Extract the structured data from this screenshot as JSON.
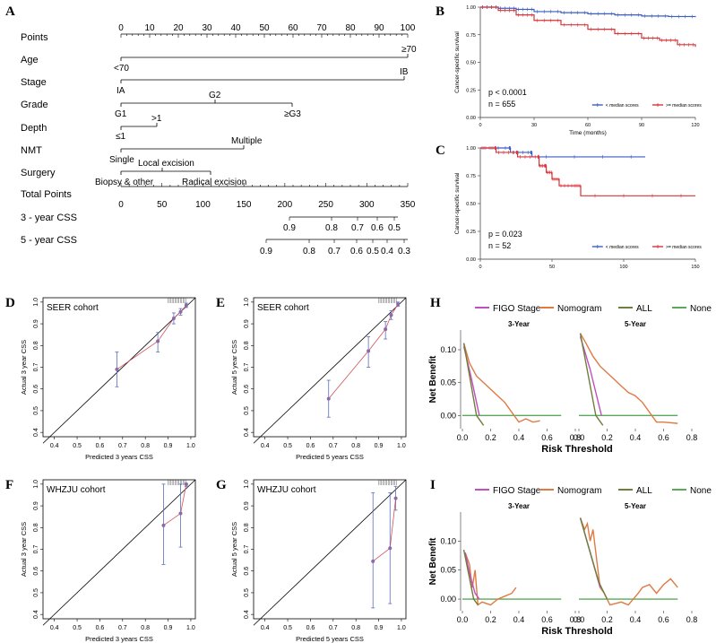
{
  "panel_labels": {
    "a": "A",
    "b": "B",
    "c": "C",
    "d": "D",
    "e": "E",
    "f": "F",
    "g": "G",
    "h": "H",
    "i": "I"
  },
  "nomogram": {
    "rows": {
      "points": "Points",
      "age": "Age",
      "stage": "Stage",
      "grade": "Grade",
      "depth": "Depth",
      "nmt": "NMT",
      "surgery": "Surgery",
      "total": "Total Points",
      "css3": "3 - year CSS",
      "css5": "5 - year CSS"
    },
    "points_ticks": [
      "0",
      "10",
      "20",
      "30",
      "40",
      "50",
      "60",
      "70",
      "80",
      "90",
      "100"
    ],
    "age": {
      "low": "<70",
      "high": "≥70"
    },
    "stage": {
      "low": "IA",
      "high": "IB"
    },
    "grade": {
      "g1": "G1",
      "g2": "G2",
      "g3": "≥G3"
    },
    "depth": {
      "low": "≤1",
      "high": ">1"
    },
    "nmt": {
      "low": "Single",
      "high": "Multiple"
    },
    "surgery": {
      "biopsy": "Biopsy & other",
      "local": "Local excision",
      "radical": "Radical excision"
    },
    "total_ticks": [
      "0",
      "50",
      "100",
      "150",
      "200",
      "250",
      "300",
      "350"
    ],
    "css3_ticks": [
      "0.9",
      "0.8",
      "0.7",
      "0.6",
      "0.5"
    ],
    "css5_ticks": [
      "0.9",
      "0.8",
      "0.7",
      "0.6",
      "0.5",
      "0.4",
      "0.3"
    ]
  },
  "chart_data": [
    {
      "id": "B",
      "type": "line",
      "title": "",
      "ylabel": "Cancer-specific survival",
      "xlabel": "Time (months)",
      "xlim": [
        0,
        120
      ],
      "ylim": [
        0,
        1
      ],
      "x_ticks": [
        "0",
        "30",
        "60",
        "90",
        "120"
      ],
      "y_ticks": [
        "0.00",
        "0.25",
        "0.50",
        "0.75",
        "1.00"
      ],
      "annotations": {
        "p": "p < 0.0001",
        "n": "n = 655"
      },
      "series": [
        {
          "name": "< median scores",
          "color": "#3b5fc0",
          "points": [
            [
              0,
              1.0
            ],
            [
              10,
              0.99
            ],
            [
              20,
              0.98
            ],
            [
              30,
              0.96
            ],
            [
              45,
              0.95
            ],
            [
              60,
              0.94
            ],
            [
              75,
              0.93
            ],
            [
              90,
              0.92
            ],
            [
              105,
              0.915
            ],
            [
              120,
              0.91
            ]
          ]
        },
        {
          "name": ">= median scores",
          "color": "#d9343b",
          "points": [
            [
              0,
              1.0
            ],
            [
              10,
              0.97
            ],
            [
              20,
              0.93
            ],
            [
              30,
              0.88
            ],
            [
              45,
              0.84
            ],
            [
              60,
              0.8
            ],
            [
              75,
              0.76
            ],
            [
              90,
              0.72
            ],
            [
              100,
              0.7
            ],
            [
              110,
              0.66
            ],
            [
              120,
              0.64
            ]
          ]
        }
      ]
    },
    {
      "id": "C",
      "type": "line",
      "ylabel": "Cancer-specific survival",
      "xlabel": "",
      "xlim": [
        0,
        150
      ],
      "ylim": [
        0,
        1
      ],
      "x_ticks": [
        "0",
        "50",
        "100",
        "150"
      ],
      "y_ticks": [
        "0.00",
        "0.25",
        "0.50",
        "0.75",
        "1.00"
      ],
      "annotations": {
        "p": "p = 0.023",
        "n": "n = 52"
      },
      "series": [
        {
          "name": "< median scores",
          "color": "#3b5fc0",
          "points": [
            [
              0,
              1.0
            ],
            [
              20,
              1.0
            ],
            [
              21,
              0.96
            ],
            [
              35,
              0.96
            ],
            [
              36,
              0.92
            ],
            [
              115,
              0.92
            ]
          ]
        },
        {
          "name": ">= median scores",
          "color": "#d9343b",
          "points": [
            [
              0,
              1.0
            ],
            [
              10,
              1.0
            ],
            [
              11,
              0.96
            ],
            [
              25,
              0.96
            ],
            [
              26,
              0.92
            ],
            [
              40,
              0.92
            ],
            [
              41,
              0.84
            ],
            [
              45,
              0.84
            ],
            [
              46,
              0.78
            ],
            [
              50,
              0.72
            ],
            [
              55,
              0.66
            ],
            [
              65,
              0.66
            ],
            [
              70,
              0.57
            ],
            [
              150,
              0.57
            ]
          ]
        }
      ]
    },
    {
      "id": "D",
      "type": "scatter",
      "title": "SEER cohort",
      "xlabel": "Predicted 3 years CSS",
      "ylabel": "Actual 3 year CSS",
      "xlim": [
        0.35,
        1.02
      ],
      "ylim": [
        0.38,
        1.02
      ],
      "x_ticks": [
        "0.4",
        "0.5",
        "0.6",
        "0.7",
        "0.8",
        "0.9",
        "1.0"
      ],
      "y_ticks": [
        "0.4",
        "0.5",
        "0.6",
        "0.7",
        "0.8",
        "0.9",
        "1.0"
      ],
      "points": [
        {
          "x": 0.675,
          "y": 0.69,
          "lo": 0.61,
          "hi": 0.77
        },
        {
          "x": 0.855,
          "y": 0.82,
          "lo": 0.77,
          "hi": 0.86
        },
        {
          "x": 0.925,
          "y": 0.925,
          "lo": 0.9,
          "hi": 0.95
        },
        {
          "x": 0.955,
          "y": 0.955,
          "lo": 0.94,
          "hi": 0.97
        },
        {
          "x": 0.98,
          "y": 0.985,
          "lo": 0.975,
          "hi": 0.995
        }
      ]
    },
    {
      "id": "E",
      "type": "scatter",
      "title": "SEER cohort",
      "xlabel": "Predicted 5 years CSS",
      "ylabel": "Actual 5 year CSS",
      "xlim": [
        0.35,
        1.02
      ],
      "ylim": [
        0.38,
        1.02
      ],
      "x_ticks": [
        "0.4",
        "0.5",
        "0.6",
        "0.7",
        "0.8",
        "0.9",
        "1.0"
      ],
      "y_ticks": [
        "0.4",
        "0.5",
        "0.6",
        "0.7",
        "0.8",
        "0.9",
        "1.0"
      ],
      "points": [
        {
          "x": 0.68,
          "y": 0.555,
          "lo": 0.47,
          "hi": 0.64
        },
        {
          "x": 0.855,
          "y": 0.775,
          "lo": 0.7,
          "hi": 0.84
        },
        {
          "x": 0.93,
          "y": 0.875,
          "lo": 0.83,
          "hi": 0.91
        },
        {
          "x": 0.955,
          "y": 0.94,
          "lo": 0.92,
          "hi": 0.96
        },
        {
          "x": 0.985,
          "y": 0.99,
          "lo": 0.98,
          "hi": 1.0
        }
      ]
    },
    {
      "id": "F",
      "type": "scatter",
      "title": "WHZJU cohort",
      "xlabel": "Predicted 3 years CSS",
      "ylabel": "Actual 3 year CSS",
      "xlim": [
        0.35,
        1.02
      ],
      "ylim": [
        0.38,
        1.02
      ],
      "x_ticks": [
        "0.4",
        "0.5",
        "0.6",
        "0.7",
        "0.8",
        "0.9",
        "1.0"
      ],
      "y_ticks": [
        "0.4",
        "0.5",
        "0.6",
        "0.7",
        "0.8",
        "0.9",
        "1.0"
      ],
      "points": [
        {
          "x": 0.88,
          "y": 0.81,
          "lo": 0.63,
          "hi": 1.0
        },
        {
          "x": 0.955,
          "y": 0.865,
          "lo": 0.71,
          "hi": 1.0
        },
        {
          "x": 0.98,
          "y": 1.0,
          "lo": 0.99,
          "hi": 1.0
        }
      ]
    },
    {
      "id": "G",
      "type": "scatter",
      "title": "WHZJU cohort",
      "xlabel": "Predicted 5 years CSS",
      "ylabel": "Actual 5 year CSS",
      "xlim": [
        0.35,
        1.02
      ],
      "ylim": [
        0.38,
        1.02
      ],
      "x_ticks": [
        "0.4",
        "0.5",
        "0.6",
        "0.7",
        "0.8",
        "0.9",
        "1.0"
      ],
      "y_ticks": [
        "0.4",
        "0.5",
        "0.6",
        "0.7",
        "0.8",
        "0.9",
        "1.0"
      ],
      "points": [
        {
          "x": 0.875,
          "y": 0.645,
          "lo": 0.43,
          "hi": 0.96
        },
        {
          "x": 0.95,
          "y": 0.705,
          "lo": 0.45,
          "hi": 0.96
        },
        {
          "x": 0.975,
          "y": 0.935,
          "lo": 0.88,
          "hi": 0.99
        }
      ]
    },
    {
      "id": "H",
      "type": "line",
      "xlabel": "Risk Threshold",
      "ylabel": "Net Benefit",
      "legend": [
        "FIGO Stage",
        "Nomogram",
        "ALL",
        "None"
      ],
      "colors": {
        "FIGO Stage": "#c24fc2",
        "Nomogram": "#e07a45",
        "ALL": "#6d7f3a",
        "None": "#5aaa5a"
      },
      "facets": [
        {
          "title": "3-Year",
          "xlim": [
            0,
            0.8
          ],
          "ylim": [
            -0.02,
            0.13
          ],
          "x_ticks": [
            "0.0",
            "0.2",
            "0.4",
            "0.6",
            "0.8"
          ],
          "y_ticks": [
            "0.00",
            "0.05",
            "0.10"
          ],
          "series": {
            "Nomogram": [
              [
                0.01,
                0.11
              ],
              [
                0.05,
                0.08
              ],
              [
                0.1,
                0.06
              ],
              [
                0.15,
                0.05
              ],
              [
                0.2,
                0.04
              ],
              [
                0.25,
                0.03
              ],
              [
                0.3,
                0.02
              ],
              [
                0.35,
                0.005
              ],
              [
                0.4,
                -0.01
              ],
              [
                0.45,
                -0.005
              ],
              [
                0.5,
                -0.01
              ],
              [
                0.55,
                -0.008
              ]
            ],
            "FIGO Stage": [
              [
                0.01,
                0.105
              ],
              [
                0.06,
                0.06
              ],
              [
                0.12,
                0.0
              ]
            ],
            "ALL": [
              [
                0.01,
                0.11
              ],
              [
                0.1,
                0.0
              ],
              [
                0.15,
                -0.015
              ]
            ],
            "None": [
              [
                0,
                0
              ],
              [
                0.7,
                0
              ]
            ]
          }
        },
        {
          "title": "5-Year",
          "xlim": [
            0,
            0.8
          ],
          "ylim": [
            -0.02,
            0.13
          ],
          "x_ticks": [
            "0.0",
            "0.2",
            "0.4",
            "0.6",
            "0.8"
          ],
          "y_ticks": [
            "0.00",
            "0.05",
            "0.10"
          ],
          "series": {
            "Nomogram": [
              [
                0.01,
                0.125
              ],
              [
                0.05,
                0.11
              ],
              [
                0.1,
                0.09
              ],
              [
                0.15,
                0.075
              ],
              [
                0.2,
                0.065
              ],
              [
                0.25,
                0.055
              ],
              [
                0.3,
                0.045
              ],
              [
                0.35,
                0.035
              ],
              [
                0.4,
                0.03
              ],
              [
                0.45,
                0.02
              ],
              [
                0.5,
                0.005
              ],
              [
                0.55,
                -0.01
              ],
              [
                0.6,
                -0.01
              ],
              [
                0.7,
                -0.012
              ]
            ],
            "FIGO Stage": [
              [
                0.01,
                0.12
              ],
              [
                0.08,
                0.07
              ],
              [
                0.16,
                0.0
              ]
            ],
            "ALL": [
              [
                0.01,
                0.125
              ],
              [
                0.12,
                0.0
              ],
              [
                0.17,
                -0.015
              ]
            ],
            "None": [
              [
                0,
                0
              ],
              [
                0.7,
                0
              ]
            ]
          }
        }
      ]
    },
    {
      "id": "I",
      "type": "line",
      "xlabel": "Risk Threshold",
      "ylabel": "Net Benefit",
      "legend": [
        "FIGO Stage",
        "Nomogram",
        "ALL",
        "None"
      ],
      "colors": {
        "FIGO Stage": "#c24fc2",
        "Nomogram": "#e07a45",
        "ALL": "#6d7f3a",
        "None": "#5aaa5a"
      },
      "facets": [
        {
          "title": "3-Year",
          "xlim": [
            0,
            0.8
          ],
          "ylim": [
            -0.02,
            0.15
          ],
          "x_ticks": [
            "0.0",
            "0.2",
            "0.4",
            "0.6",
            "0.8"
          ],
          "y_ticks": [
            "0.00",
            "0.05",
            "0.10"
          ],
          "series": {
            "Nomogram": [
              [
                0.02,
                0.08
              ],
              [
                0.05,
                0.06
              ],
              [
                0.07,
                0.02
              ],
              [
                0.09,
                0.05
              ],
              [
                0.11,
                -0.01
              ],
              [
                0.14,
                -0.005
              ],
              [
                0.2,
                -0.01
              ],
              [
                0.25,
                0.0
              ],
              [
                0.3,
                0.005
              ],
              [
                0.35,
                0.01
              ],
              [
                0.38,
                0.02
              ]
            ],
            "FIGO Stage": [
              [
                0.02,
                0.08
              ],
              [
                0.05,
                0.045
              ],
              [
                0.09,
                0.01
              ],
              [
                0.12,
                0.0
              ]
            ],
            "ALL": [
              [
                0.01,
                0.085
              ],
              [
                0.08,
                0.0
              ],
              [
                0.11,
                -0.01
              ]
            ],
            "None": [
              [
                0,
                0
              ],
              [
                0.7,
                0
              ]
            ]
          }
        },
        {
          "title": "5-Year",
          "xlim": [
            0,
            0.8
          ],
          "ylim": [
            -0.02,
            0.15
          ],
          "x_ticks": [
            "0.0",
            "0.2",
            "0.4",
            "0.6",
            "0.8"
          ],
          "y_ticks": [
            "0.00",
            "0.05",
            "0.10"
          ],
          "series": {
            "Nomogram": [
              [
                0.01,
                0.14
              ],
              [
                0.04,
                0.12
              ],
              [
                0.06,
                0.13
              ],
              [
                0.08,
                0.1
              ],
              [
                0.1,
                0.12
              ],
              [
                0.12,
                0.08
              ],
              [
                0.15,
                0.02
              ],
              [
                0.18,
                0.01
              ],
              [
                0.22,
                -0.01
              ],
              [
                0.3,
                -0.005
              ],
              [
                0.35,
                -0.01
              ],
              [
                0.42,
                0.01
              ],
              [
                0.45,
                0.02
              ],
              [
                0.5,
                0.025
              ],
              [
                0.55,
                0.01
              ],
              [
                0.6,
                0.025
              ],
              [
                0.65,
                0.035
              ],
              [
                0.7,
                0.02
              ]
            ],
            "FIGO Stage": [
              [
                0.01,
                0.14
              ],
              [
                0.08,
                0.08
              ],
              [
                0.15,
                0.02
              ]
            ],
            "ALL": [
              [
                0.01,
                0.14
              ],
              [
                0.14,
                0.03
              ],
              [
                0.2,
                0.0
              ]
            ],
            "None": [
              [
                0,
                0
              ],
              [
                0.7,
                0
              ]
            ]
          }
        }
      ]
    }
  ]
}
